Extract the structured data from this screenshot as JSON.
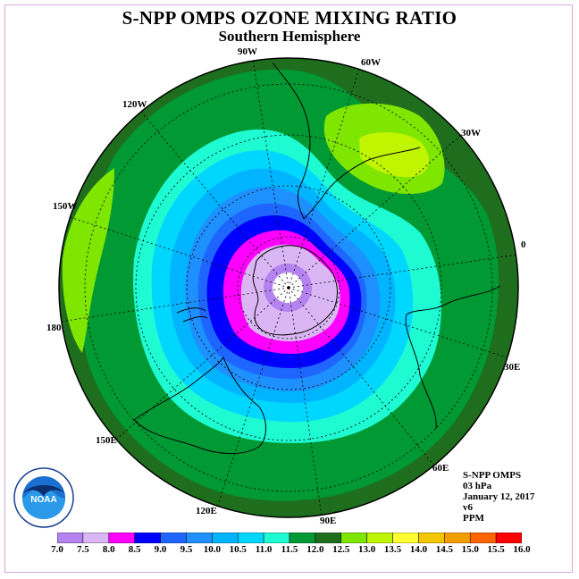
{
  "title": "S-NPP OMPS OZONE MIXING RATIO",
  "subtitle": "Southern Hemisphere",
  "longitudes": [
    {
      "label": "90W",
      "name": "lon-90w"
    },
    {
      "label": "60W",
      "name": "lon-60w"
    },
    {
      "label": "120W",
      "name": "lon-120w"
    },
    {
      "label": "30W",
      "name": "lon-30w"
    },
    {
      "label": "150W",
      "name": "lon-150w"
    },
    {
      "label": "0",
      "name": "lon-0"
    },
    {
      "label": "180",
      "name": "lon-180"
    },
    {
      "label": "30E",
      "name": "lon-30e"
    },
    {
      "label": "150E",
      "name": "lon-150e"
    },
    {
      "label": "60E",
      "name": "lon-60e"
    },
    {
      "label": "120E",
      "name": "lon-120e"
    },
    {
      "label": "90E",
      "name": "lon-90e"
    }
  ],
  "info": {
    "instrument": "S-NPP OMPS",
    "level": "03 hPa",
    "date": "January 12, 2017",
    "version": "v6",
    "units": "PPM"
  },
  "logo_text": "NOAA",
  "colorbar": {
    "labels": [
      "7.0",
      "7.5",
      "8.0",
      "8.5",
      "9.0",
      "9.5",
      "10.0",
      "10.5",
      "11.0",
      "11.5",
      "12.0",
      "12.5",
      "13.0",
      "13.5",
      "14.0",
      "14.5",
      "15.0",
      "15.5",
      "16.0"
    ],
    "colors": [
      "#b583f0",
      "#dbb6f5",
      "#ff00ff",
      "#0000ff",
      "#1e66ff",
      "#1e90ff",
      "#00b4ff",
      "#00d7ff",
      "#1efad2",
      "#009933",
      "#1e6e1e",
      "#7fe600",
      "#bff500",
      "#ffff33",
      "#f2c600",
      "#f29e00",
      "#ff6400",
      "#ff0000",
      "#8c5032"
    ]
  }
}
